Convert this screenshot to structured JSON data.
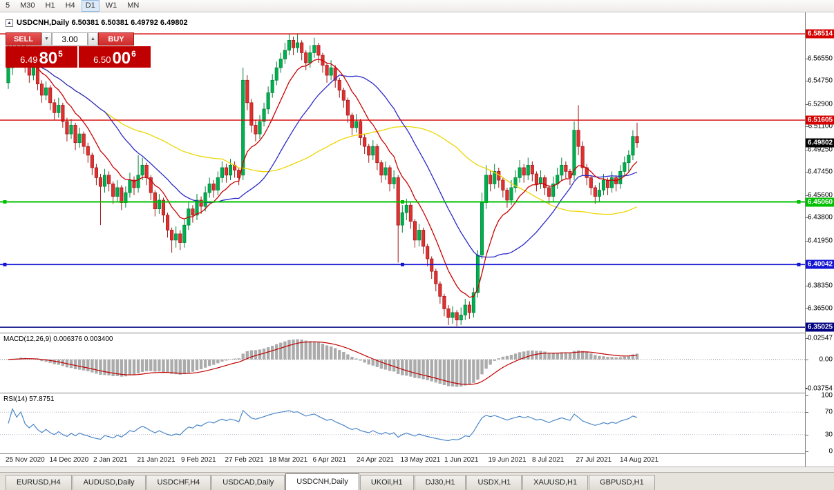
{
  "toolbar": {
    "timeframes": [
      "5",
      "M30",
      "H1",
      "H4",
      "D1",
      "W1",
      "MN"
    ],
    "active_timeframe": "D1"
  },
  "chart_header": {
    "title": "USDCNH,Daily 6.50381 6.50381 6.49792 6.49802"
  },
  "trade_panel": {
    "sell_label": "SELL",
    "buy_label": "BUY",
    "volume_value": "3.00",
    "volume_down_icon": "▼",
    "volume_up_icon": "▲",
    "sell_price": {
      "head": "6.49",
      "big": "80",
      "sup": "5"
    },
    "buy_price": {
      "head": "6.50",
      "big": "00",
      "sup": "6"
    },
    "button_color": "#CE2B2B",
    "price_box_color": "#C00000"
  },
  "price_axis": {
    "ticks": [
      "6.56550",
      "6.54750",
      "6.52900",
      "6.51100",
      "6.49250",
      "6.47450",
      "6.45600",
      "6.43800",
      "6.41950",
      "6.38350",
      "6.36500"
    ],
    "current_price": {
      "label": "6.49802",
      "color": "#000000"
    }
  },
  "macd_panel": {
    "label": "MACD(12,26,9) 0.006376 0.003400",
    "axis_max": "0.02547",
    "axis_zero": "0.00",
    "axis_min": "-0.03754",
    "histogram_color": "#ABABAB",
    "signal_color": "#C00000"
  },
  "rsi_panel": {
    "label": "RSI(14) 57.8751",
    "axis_labels": [
      "100",
      "70",
      "30",
      "0"
    ],
    "upper_level": 70,
    "lower_level": 30,
    "line_color": "#4A86C8"
  },
  "time_axis": {
    "dates": [
      "25 Nov 2020",
      "14 Dec 2020",
      "2 Jan 2021",
      "21 Jan 2021",
      "9 Feb 2021",
      "27 Feb 2021",
      "18 Mar 2021",
      "6 Apr 2021",
      "24 Apr 2021",
      "13 May 2021",
      "1 Jun 2021",
      "19 Jun 2021",
      "8 Jul 2021",
      "27 Jul 2021",
      "14 Aug 2021"
    ]
  },
  "tabs": {
    "items": [
      "EURUSD,H4",
      "AUDUSD,Daily",
      "USDCHF,H4",
      "USDCAD,Daily",
      "USDCNH,Daily",
      "UKOil,H1",
      "DJ30,H1",
      "USDX,H1",
      "XAUUSD,H1",
      "GBPUSD,H1"
    ],
    "active": "USDCNH,Daily"
  },
  "chart_data": {
    "type": "candlestick",
    "symbol": "USDCNH",
    "timeframe": "Daily",
    "ohlc_header": {
      "open": 6.50381,
      "high": 6.50381,
      "low": 6.49792,
      "close": 6.49802
    },
    "ylim": [
      6.3459,
      6.6023
    ],
    "up_color": "#00B050",
    "down_color": "#E03030",
    "levels": [
      {
        "label": "6.58514",
        "price": 6.58514,
        "color": "#D40000",
        "width": 1.4,
        "selected": false
      },
      {
        "label": "6.51605",
        "price": 6.51605,
        "color": "#D40000",
        "width": 1.4,
        "selected": false
      },
      {
        "label": "6.45060",
        "price": 6.4506,
        "color": "#00C000",
        "width": 2,
        "selected": true
      },
      {
        "label": "6.40042",
        "price": 6.40042,
        "color": "#1414D4",
        "width": 1.6,
        "selected": true
      },
      {
        "label": "6.35025",
        "price": 6.35025,
        "color": "#000080",
        "width": 1.6,
        "selected": false
      }
    ],
    "moving_averages": [
      {
        "type": "ema",
        "period": 10,
        "color": "#CC0000"
      },
      {
        "type": "sma",
        "period": 24,
        "color": "#2929C8"
      },
      {
        "type": "sma",
        "period": 52,
        "color": "#EDD500"
      }
    ],
    "macd": {
      "fast": 12,
      "slow": 26,
      "signal": 9,
      "value": 0.006376,
      "signal_value": 0.0034
    },
    "rsi": {
      "period": 14,
      "value": 57.8751
    },
    "candles": [
      [
        6.546,
        6.584,
        6.541,
        6.558
      ],
      [
        6.558,
        6.578,
        6.552,
        6.572
      ],
      [
        6.572,
        6.576,
        6.558,
        6.566
      ],
      [
        6.566,
        6.581,
        6.562,
        6.575
      ],
      [
        6.575,
        6.577,
        6.554,
        6.56
      ],
      [
        6.56,
        6.565,
        6.546,
        6.552
      ],
      [
        6.552,
        6.563,
        6.548,
        6.558
      ],
      [
        6.558,
        6.56,
        6.54,
        6.545
      ],
      [
        6.545,
        6.548,
        6.53,
        6.536
      ],
      [
        6.536,
        6.547,
        6.532,
        6.542
      ],
      [
        6.542,
        6.544,
        6.524,
        6.53
      ],
      [
        6.53,
        6.533,
        6.516,
        6.522
      ],
      [
        6.522,
        6.534,
        6.518,
        6.528
      ],
      [
        6.528,
        6.53,
        6.51,
        6.515
      ],
      [
        6.515,
        6.518,
        6.499,
        6.505
      ],
      [
        6.505,
        6.517,
        6.501,
        6.512
      ],
      [
        6.512,
        6.514,
        6.492,
        6.498
      ],
      [
        6.498,
        6.51,
        6.494,
        6.505
      ],
      [
        6.505,
        6.507,
        6.489,
        6.495
      ],
      [
        6.495,
        6.498,
        6.482,
        6.488
      ],
      [
        6.488,
        6.49,
        6.472,
        6.478
      ],
      [
        6.478,
        6.481,
        6.464,
        6.47
      ],
      [
        6.47,
        6.473,
        6.432,
        6.463
      ],
      [
        6.463,
        6.477,
        6.458,
        6.472
      ],
      [
        6.472,
        6.475,
        6.459,
        6.465
      ],
      [
        6.465,
        6.467,
        6.449,
        6.455
      ],
      [
        6.455,
        6.468,
        6.451,
        6.462
      ],
      [
        6.462,
        6.464,
        6.444,
        6.45
      ],
      [
        6.45,
        6.463,
        6.446,
        6.458
      ],
      [
        6.458,
        6.474,
        6.454,
        6.468
      ],
      [
        6.468,
        6.471,
        6.456,
        6.462
      ],
      [
        6.462,
        6.488,
        6.458,
        6.472
      ],
      [
        6.472,
        6.486,
        6.468,
        6.48
      ],
      [
        6.48,
        6.482,
        6.464,
        6.47
      ],
      [
        6.47,
        6.472,
        6.452,
        6.458
      ],
      [
        6.458,
        6.46,
        6.439,
        6.445
      ],
      [
        6.445,
        6.457,
        6.441,
        6.452
      ],
      [
        6.452,
        6.454,
        6.434,
        6.44
      ],
      [
        6.44,
        6.442,
        6.422,
        6.428
      ],
      [
        6.428,
        6.43,
        6.41,
        6.42
      ],
      [
        6.42,
        6.431,
        6.414,
        6.425
      ],
      [
        6.425,
        6.428,
        6.412,
        6.418
      ],
      [
        6.418,
        6.437,
        6.414,
        6.432
      ],
      [
        6.432,
        6.45,
        6.428,
        6.445
      ],
      [
        6.445,
        6.448,
        6.434,
        6.44
      ],
      [
        6.44,
        6.457,
        6.436,
        6.452
      ],
      [
        6.452,
        6.455,
        6.441,
        6.447
      ],
      [
        6.447,
        6.463,
        6.443,
        6.458
      ],
      [
        6.458,
        6.47,
        6.454,
        6.465
      ],
      [
        6.465,
        6.468,
        6.454,
        6.46
      ],
      [
        6.46,
        6.475,
        6.456,
        6.47
      ],
      [
        6.47,
        6.483,
        6.466,
        6.478
      ],
      [
        6.478,
        6.481,
        6.466,
        6.472
      ],
      [
        6.472,
        6.485,
        6.468,
        6.48
      ],
      [
        6.48,
        6.483,
        6.47,
        6.476
      ],
      [
        6.476,
        6.478,
        6.464,
        6.47
      ],
      [
        6.472,
        6.558,
        6.468,
        6.548
      ],
      [
        6.548,
        6.552,
        6.524,
        6.53
      ],
      [
        6.53,
        6.533,
        6.506,
        6.512
      ],
      [
        6.512,
        6.516,
        6.499,
        6.505
      ],
      [
        6.505,
        6.52,
        6.501,
        6.515
      ],
      [
        6.515,
        6.53,
        6.511,
        6.525
      ],
      [
        6.525,
        6.543,
        6.521,
        6.538
      ],
      [
        6.538,
        6.553,
        6.534,
        6.548
      ],
      [
        6.548,
        6.563,
        6.544,
        6.558
      ],
      [
        6.558,
        6.57,
        6.554,
        6.565
      ],
      [
        6.565,
        6.578,
        6.561,
        6.572
      ],
      [
        6.572,
        6.585,
        6.568,
        6.58
      ],
      [
        6.58,
        6.583,
        6.568,
        6.574
      ],
      [
        6.574,
        6.585,
        6.57,
        6.578
      ],
      [
        6.578,
        6.58,
        6.564,
        6.57
      ],
      [
        6.57,
        6.572,
        6.556,
        6.562
      ],
      [
        6.562,
        6.576,
        6.558,
        6.57
      ],
      [
        6.57,
        6.582,
        6.566,
        6.576
      ],
      [
        6.576,
        6.578,
        6.562,
        6.568
      ],
      [
        6.568,
        6.57,
        6.554,
        6.56
      ],
      [
        6.56,
        6.562,
        6.546,
        6.552
      ],
      [
        6.552,
        6.564,
        6.548,
        6.558
      ],
      [
        6.558,
        6.56,
        6.542,
        6.548
      ],
      [
        6.548,
        6.55,
        6.534,
        6.54
      ],
      [
        6.54,
        6.542,
        6.526,
        6.532
      ],
      [
        6.532,
        6.534,
        6.514,
        6.52
      ],
      [
        6.52,
        6.522,
        6.504,
        6.51
      ],
      [
        6.51,
        6.521,
        6.506,
        6.515
      ],
      [
        6.515,
        6.517,
        6.496,
        6.502
      ],
      [
        6.502,
        6.505,
        6.489,
        6.495
      ],
      [
        6.495,
        6.497,
        6.482,
        6.488
      ],
      [
        6.488,
        6.5,
        6.484,
        6.495
      ],
      [
        6.495,
        6.497,
        6.476,
        6.482
      ],
      [
        6.482,
        6.484,
        6.466,
        6.472
      ],
      [
        6.472,
        6.483,
        6.468,
        6.478
      ],
      [
        6.478,
        6.48,
        6.459,
        6.465
      ],
      [
        6.465,
        6.476,
        6.461,
        6.47
      ],
      [
        6.47,
        6.472,
        6.402,
        6.432
      ],
      [
        6.432,
        6.448,
        6.426,
        6.442
      ],
      [
        6.442,
        6.453,
        6.436,
        6.448
      ],
      [
        6.448,
        6.45,
        6.429,
        6.435
      ],
      [
        6.435,
        6.437,
        6.414,
        6.42
      ],
      [
        6.42,
        6.433,
        6.415,
        6.428
      ],
      [
        6.428,
        6.43,
        6.409,
        6.415
      ],
      [
        6.415,
        6.417,
        6.399,
        6.405
      ],
      [
        6.405,
        6.407,
        6.389,
        6.395
      ],
      [
        6.395,
        6.397,
        6.379,
        6.385
      ],
      [
        6.385,
        6.387,
        6.369,
        6.375
      ],
      [
        6.375,
        6.377,
        6.359,
        6.365
      ],
      [
        6.365,
        6.368,
        6.352,
        6.358
      ],
      [
        6.358,
        6.367,
        6.353,
        6.362
      ],
      [
        6.362,
        6.364,
        6.351,
        6.356
      ],
      [
        6.356,
        6.366,
        6.352,
        6.36
      ],
      [
        6.36,
        6.373,
        6.356,
        6.368
      ],
      [
        6.368,
        6.371,
        6.357,
        6.362
      ],
      [
        6.362,
        6.382,
        6.358,
        6.378
      ],
      [
        6.378,
        6.412,
        6.374,
        6.408
      ],
      [
        6.408,
        6.458,
        6.405,
        6.45
      ],
      [
        6.45,
        6.48,
        6.445,
        6.472
      ],
      [
        6.472,
        6.476,
        6.459,
        6.465
      ],
      [
        6.465,
        6.481,
        6.461,
        6.475
      ],
      [
        6.475,
        6.478,
        6.462,
        6.468
      ],
      [
        6.468,
        6.47,
        6.454,
        6.46
      ],
      [
        6.46,
        6.462,
        6.446,
        6.452
      ],
      [
        6.452,
        6.468,
        6.448,
        6.462
      ],
      [
        6.462,
        6.476,
        6.458,
        6.47
      ],
      [
        6.47,
        6.484,
        6.466,
        6.478
      ],
      [
        6.478,
        6.481,
        6.466,
        6.472
      ],
      [
        6.472,
        6.486,
        6.468,
        6.48
      ],
      [
        6.48,
        6.483,
        6.467,
        6.473
      ],
      [
        6.473,
        6.475,
        6.459,
        6.465
      ],
      [
        6.465,
        6.476,
        6.461,
        6.47
      ],
      [
        6.47,
        6.472,
        6.456,
        6.462
      ],
      [
        6.462,
        6.464,
        6.449,
        6.455
      ],
      [
        6.455,
        6.471,
        6.451,
        6.465
      ],
      [
        6.465,
        6.478,
        6.461,
        6.472
      ],
      [
        6.472,
        6.486,
        6.468,
        6.48
      ],
      [
        6.48,
        6.483,
        6.469,
        6.475
      ],
      [
        6.475,
        6.477,
        6.464,
        6.47
      ],
      [
        6.472,
        6.515,
        6.468,
        6.508
      ],
      [
        6.508,
        6.528,
        6.488,
        6.495
      ],
      [
        6.495,
        6.499,
        6.472,
        6.478
      ],
      [
        6.478,
        6.481,
        6.464,
        6.47
      ],
      [
        6.47,
        6.472,
        6.456,
        6.462
      ],
      [
        6.462,
        6.464,
        6.449,
        6.455
      ],
      [
        6.455,
        6.466,
        6.451,
        6.46
      ],
      [
        6.46,
        6.473,
        6.456,
        6.468
      ],
      [
        6.468,
        6.47,
        6.456,
        6.462
      ],
      [
        6.462,
        6.475,
        6.458,
        6.47
      ],
      [
        6.47,
        6.472,
        6.459,
        6.465
      ],
      [
        6.465,
        6.48,
        6.461,
        6.475
      ],
      [
        6.475,
        6.487,
        6.471,
        6.482
      ],
      [
        6.482,
        6.492,
        6.474,
        6.488
      ],
      [
        6.488,
        6.508,
        6.484,
        6.503
      ],
      [
        6.503,
        6.514,
        6.494,
        6.498
      ]
    ]
  }
}
